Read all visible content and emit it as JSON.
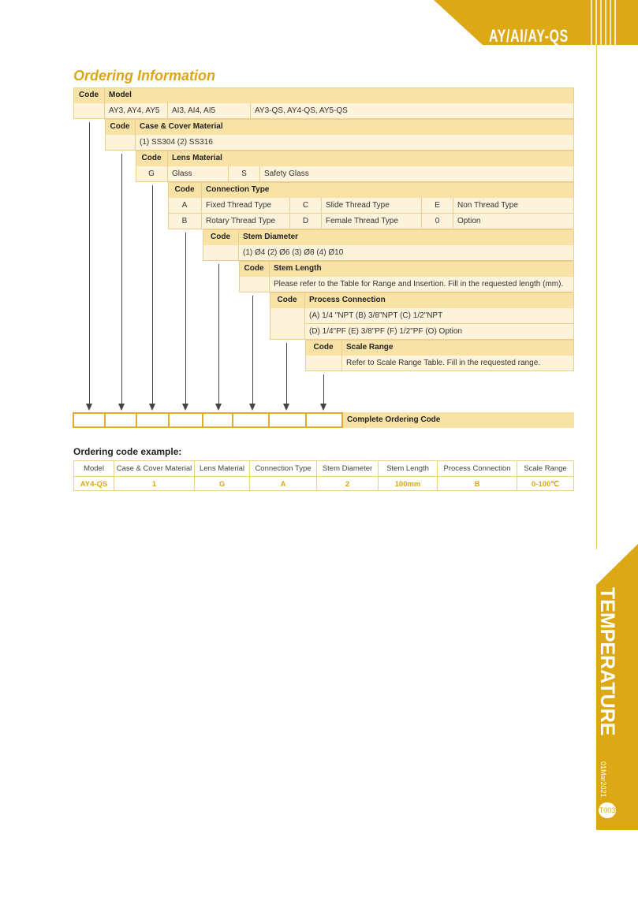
{
  "header_banner": {
    "title": "AY/AI/AY-QS"
  },
  "side_tab": {
    "category": "TEMPERATURE",
    "date": "01Mar2021",
    "page": "T003"
  },
  "colors": {
    "accent": "#dca816",
    "header_fill": "#f8e2a6",
    "row_fill": "#fdf3da",
    "title": "#d9a619"
  },
  "ordering": {
    "title": "Ordering Information",
    "code_label": "Code",
    "model": {
      "title": "Model",
      "options": [
        "AY3, AY4, AY5",
        "AI3, AI4, AI5",
        "AY3-QS, AY4-QS, AY5-QS"
      ]
    },
    "case": {
      "title": "Case & Cover Material",
      "options": "(1) SS304   (2) SS316"
    },
    "lens": {
      "title": "Lens Material",
      "rows": [
        {
          "code": "G",
          "label": "Glass"
        },
        {
          "code": "S",
          "label": "Safety Glass"
        }
      ]
    },
    "connection": {
      "title": "Connection Type",
      "rows": [
        [
          {
            "code": "A",
            "label": "Fixed Thread Type"
          },
          {
            "code": "C",
            "label": "Slide Thread Type"
          },
          {
            "code": "E",
            "label": "Non Thread Type"
          }
        ],
        [
          {
            "code": "B",
            "label": "Rotary Thread Type"
          },
          {
            "code": "D",
            "label": "Female Thread Type"
          },
          {
            "code": "0",
            "label": "Option"
          }
        ]
      ]
    },
    "stem_diameter": {
      "title": "Stem Diameter",
      "options": "(1) Ø4   (2) Ø6   (3) Ø8   (4) Ø10"
    },
    "stem_length": {
      "title": "Stem Length",
      "note": "Please refer to the Table for Range and Insertion. Fill in the requested length (mm)."
    },
    "process": {
      "title": "Process Connection",
      "lines": [
        "(A) 1/4 \"NPT    (B) 3/8\"NPT    (C) 1/2\"NPT",
        "(D) 1/4\"PF   (E) 3/8\"PF   (F) 1/2\"PF   (O) Option"
      ]
    },
    "scale": {
      "title": "Scale Range",
      "note": "Refer to Scale Range Table.  Fill in the requested range."
    },
    "complete_label": "Complete Ordering Code"
  },
  "example": {
    "title": "Ordering code example:",
    "headers": [
      "Model",
      "Case & Cover Material",
      "Lens Material",
      "Connection Type",
      "Stem Diameter",
      "Stem Length",
      "Process Connection",
      "Scale Range"
    ],
    "values": [
      "AY4-QS",
      "1",
      "G",
      "A",
      "2",
      "100mm",
      "B",
      "0-100℃"
    ]
  }
}
